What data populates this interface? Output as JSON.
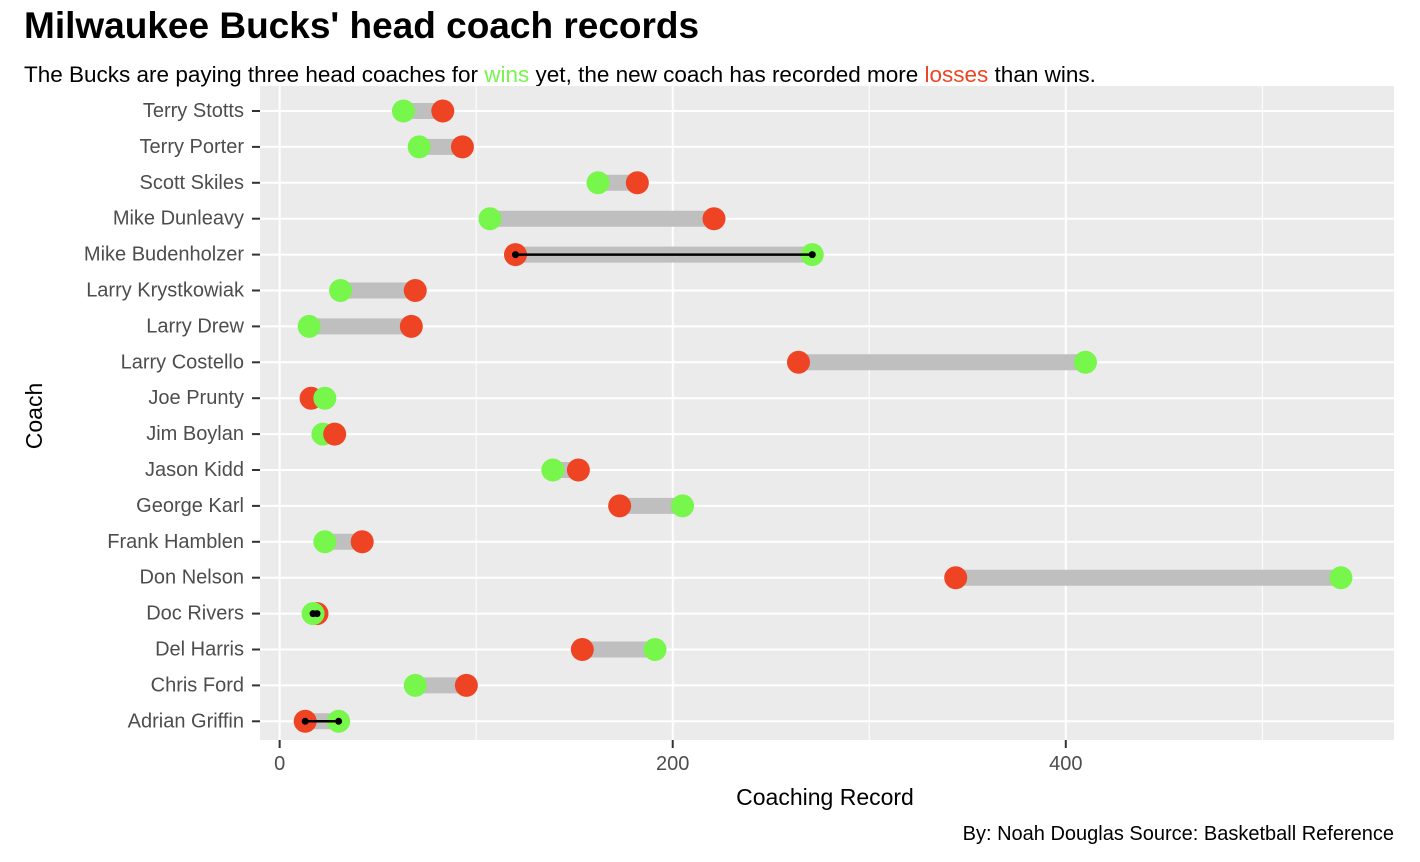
{
  "title": "Milwaukee Bucks' head coach records",
  "subtitle": {
    "part1": "The Bucks are paying three head coaches for ",
    "wins_word": "wins",
    "part2": " yet, the new coach has recorded more ",
    "losses_word": "losses",
    "part3": " than wins."
  },
  "caption": "By: Noah Douglas Source: Basketball Reference",
  "colors": {
    "wins": "#77f64b",
    "losses": "#ee4423",
    "segment": "#bfbfbf",
    "panel": "#ebebeb",
    "gridline": "#ffffff",
    "highlight_line": "#000000"
  },
  "chart_data": {
    "type": "dumbbell",
    "xlabel": "Coaching Record",
    "ylabel": "Coach",
    "xlim": [
      -10,
      567
    ],
    "x_ticks": [
      0,
      200,
      400
    ],
    "x_tick_labels": [
      "0",
      "200",
      "400"
    ],
    "series": [
      {
        "name": "wins",
        "key": "wins"
      },
      {
        "name": "losses",
        "key": "losses"
      }
    ],
    "coaches": [
      {
        "name": "Terry Stotts",
        "wins": 63,
        "losses": 83,
        "highlight": false
      },
      {
        "name": "Terry Porter",
        "wins": 71,
        "losses": 93,
        "highlight": false
      },
      {
        "name": "Scott Skiles",
        "wins": 162,
        "losses": 182,
        "highlight": false
      },
      {
        "name": "Mike Dunleavy",
        "wins": 107,
        "losses": 221,
        "highlight": false
      },
      {
        "name": "Mike Budenholzer",
        "wins": 271,
        "losses": 120,
        "highlight": true
      },
      {
        "name": "Larry Krystkowiak",
        "wins": 31,
        "losses": 69,
        "highlight": false
      },
      {
        "name": "Larry Drew",
        "wins": 15,
        "losses": 67,
        "highlight": false
      },
      {
        "name": "Larry Costello",
        "wins": 410,
        "losses": 264,
        "highlight": false
      },
      {
        "name": "Joe Prunty",
        "wins": 23,
        "losses": 16,
        "highlight": false
      },
      {
        "name": "Jim Boylan",
        "wins": 22,
        "losses": 28,
        "highlight": false
      },
      {
        "name": "Jason Kidd",
        "wins": 139,
        "losses": 152,
        "highlight": false
      },
      {
        "name": "George Karl",
        "wins": 205,
        "losses": 173,
        "highlight": false
      },
      {
        "name": "Frank Hamblen",
        "wins": 23,
        "losses": 42,
        "highlight": false
      },
      {
        "name": "Don Nelson",
        "wins": 540,
        "losses": 344,
        "highlight": false
      },
      {
        "name": "Doc Rivers",
        "wins": 17,
        "losses": 19,
        "highlight": true
      },
      {
        "name": "Del Harris",
        "wins": 191,
        "losses": 154,
        "highlight": false
      },
      {
        "name": "Chris Ford",
        "wins": 69,
        "losses": 95,
        "highlight": false
      },
      {
        "name": "Adrian Griffin",
        "wins": 30,
        "losses": 13,
        "highlight": true
      }
    ]
  }
}
